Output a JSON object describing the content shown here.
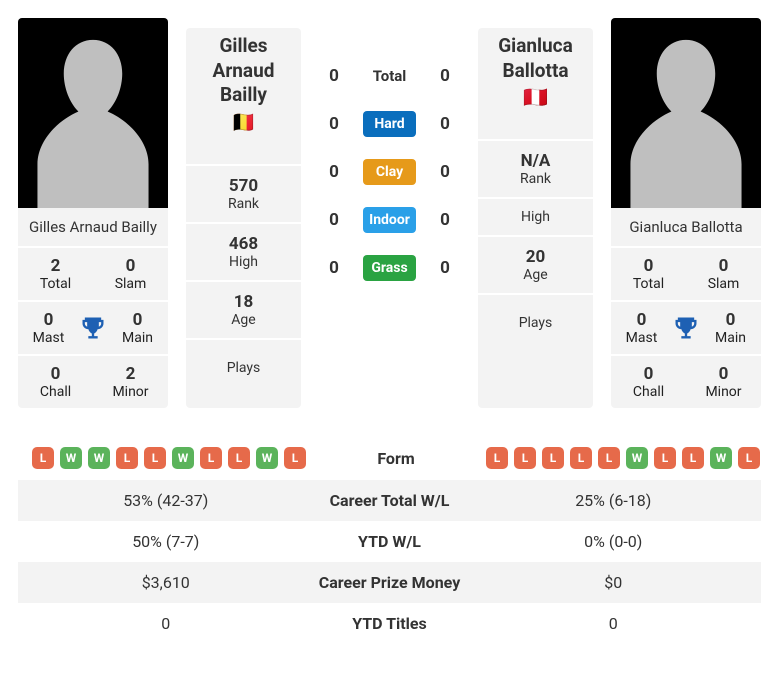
{
  "colors": {
    "card_bg": "#f3f3f3",
    "avatar_bg": "#000000",
    "avatar_fill": "#bfbfbf",
    "trophy": "#1e60b3",
    "hard": "#0a6ebd",
    "clay": "#e69a1a",
    "indoor": "#2aa0e8",
    "grass": "#2aa342",
    "form_w": "#5bb35b",
    "form_l": "#e66a4a"
  },
  "p1": {
    "name": "Gilles Arnaud Bailly",
    "flag": "🇧🇪",
    "rank": "570",
    "high": "468",
    "age": "18",
    "plays_label": "Plays",
    "titles": {
      "total": "2",
      "slam": "0",
      "mast": "0",
      "main": "0",
      "chall": "0",
      "minor": "2"
    }
  },
  "p2": {
    "name": "Gianluca Ballotta",
    "flag": "🇵🇪",
    "rank": "N/A",
    "high": "",
    "age": "20",
    "plays_label": "Plays",
    "titles": {
      "total": "0",
      "slam": "0",
      "mast": "0",
      "main": "0",
      "chall": "0",
      "minor": "0"
    }
  },
  "title_labels": {
    "total": "Total",
    "slam": "Slam",
    "mast": "Mast",
    "main": "Main",
    "chall": "Chall",
    "minor": "Minor"
  },
  "rank_labels": {
    "rank": "Rank",
    "high": "High",
    "age": "Age"
  },
  "h2h": {
    "total_label": "Total",
    "surfaces": [
      "Hard",
      "Clay",
      "Indoor",
      "Grass"
    ],
    "surface_colors": [
      "hard",
      "clay",
      "indoor",
      "grass"
    ],
    "p1_total": "0",
    "p2_total": "0",
    "p1_s": [
      "0",
      "0",
      "0",
      "0"
    ],
    "p2_s": [
      "0",
      "0",
      "0",
      "0"
    ]
  },
  "compare": {
    "rows": [
      {
        "label": "Form"
      },
      {
        "label": "Career Total W/L",
        "l": "53% (42-37)",
        "r": "25% (6-18)"
      },
      {
        "label": "YTD W/L",
        "l": "50% (7-7)",
        "r": "0% (0-0)"
      },
      {
        "label": "Career Prize Money",
        "l": "$3,610",
        "r": "$0"
      },
      {
        "label": "YTD Titles",
        "l": "0",
        "r": "0"
      }
    ],
    "p1_form": [
      "L",
      "W",
      "W",
      "L",
      "L",
      "W",
      "L",
      "L",
      "W",
      "L"
    ],
    "p2_form": [
      "L",
      "L",
      "L",
      "L",
      "L",
      "W",
      "L",
      "L",
      "W",
      "L"
    ]
  }
}
